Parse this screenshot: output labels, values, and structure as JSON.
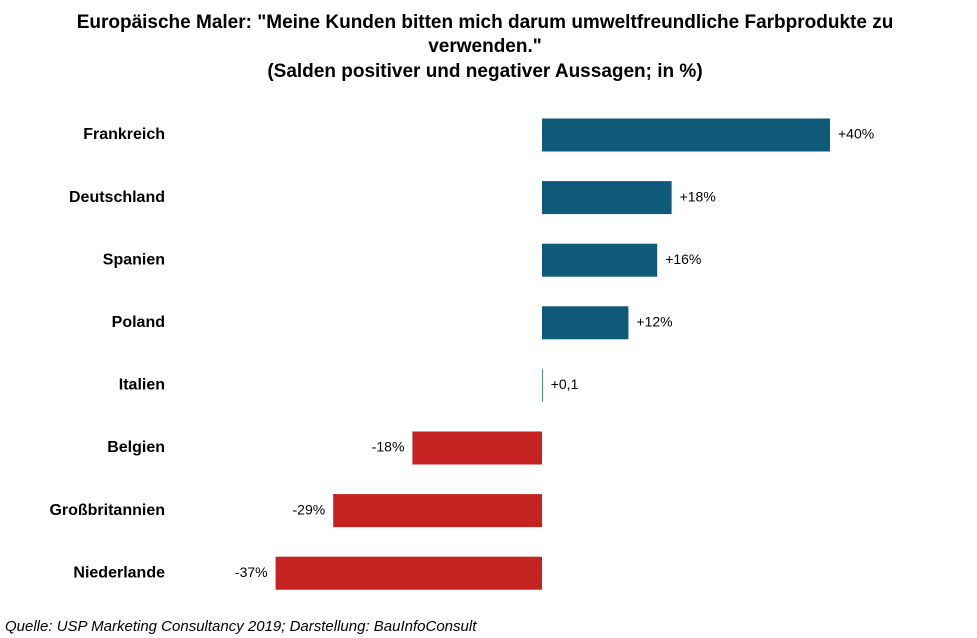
{
  "chart_data": {
    "type": "bar",
    "orientation": "horizontal",
    "title": [
      "Europäische Maler: \"Meine Kunden bitten mich darum umweltfreundliche Farbprodukte zu",
      "verwenden.\"",
      "(Salden positiver und negativer Aussagen; in %)"
    ],
    "categories": [
      "Frankreich",
      "Deutschland",
      "Spanien",
      "Poland",
      "Italien",
      "Belgien",
      "Großbritannien",
      "Niederlande"
    ],
    "values": [
      40,
      18,
      16,
      12,
      0.1,
      -18,
      -29,
      -37
    ],
    "value_labels": [
      "+40%",
      "+18%",
      "+16%",
      "+12%",
      "+0,1",
      "-18%",
      "-29%",
      "-37%"
    ],
    "positive_color": "#0e5a78",
    "negative_color": "#c62221",
    "source": "Quelle: USP Marketing Consultancy 2019; Darstellung: BauInfoConsult"
  }
}
